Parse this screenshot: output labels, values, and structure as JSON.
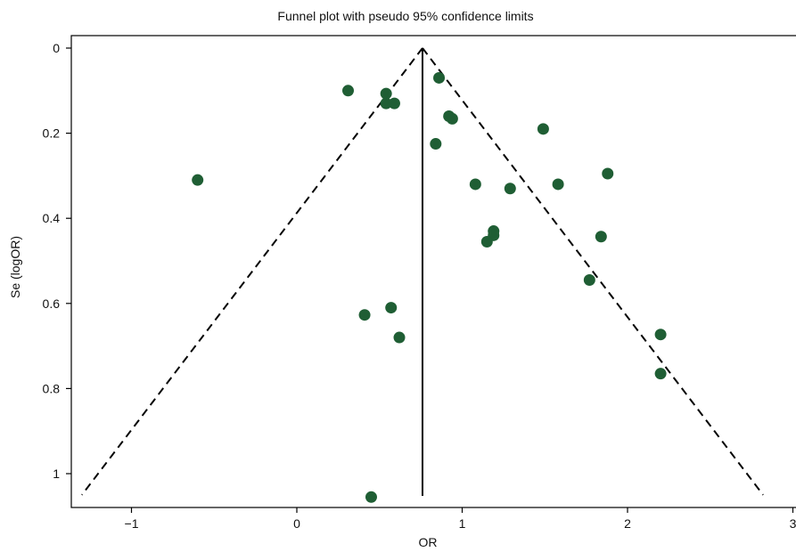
{
  "chart_data": {
    "type": "scatter",
    "title": "Funnel plot with pseudo 95% confidence limits",
    "xlabel": "OR",
    "ylabel": "Se (logOR)",
    "xlim": [
      -1.35,
      3
    ],
    "ylim": [
      0,
      1.07
    ],
    "y_inverted": true,
    "x_ticks": [
      -1,
      0,
      1,
      2,
      3
    ],
    "x_tick_labels": [
      "−1",
      "0",
      "1",
      "2",
      "3"
    ],
    "y_ticks": [
      0,
      0.2,
      0.4,
      0.6,
      0.8,
      1
    ],
    "y_tick_labels": [
      "0",
      "0.2",
      "0.4",
      "0.6",
      "0.8",
      "1"
    ],
    "pooled_estimate": 0.76,
    "funnel_limits": {
      "apex": [
        0.76,
        0
      ],
      "bottom_left": [
        -1.3,
        1.05
      ],
      "bottom_right": [
        2.82,
        1.05
      ]
    },
    "marker_color": "#1f5e34",
    "points": [
      {
        "x": 0.86,
        "y": 0.07
      },
      {
        "x": 0.31,
        "y": 0.1
      },
      {
        "x": 0.54,
        "y": 0.107
      },
      {
        "x": 0.54,
        "y": 0.13
      },
      {
        "x": 0.59,
        "y": 0.13
      },
      {
        "x": 0.92,
        "y": 0.16
      },
      {
        "x": 0.94,
        "y": 0.166
      },
      {
        "x": 0.84,
        "y": 0.225
      },
      {
        "x": 1.49,
        "y": 0.19
      },
      {
        "x": -0.6,
        "y": 0.31
      },
      {
        "x": 1.08,
        "y": 0.32
      },
      {
        "x": 1.29,
        "y": 0.33
      },
      {
        "x": 1.58,
        "y": 0.32
      },
      {
        "x": 1.88,
        "y": 0.295
      },
      {
        "x": 1.19,
        "y": 0.43
      },
      {
        "x": 1.19,
        "y": 0.44
      },
      {
        "x": 1.15,
        "y": 0.455
      },
      {
        "x": 1.84,
        "y": 0.443
      },
      {
        "x": 1.77,
        "y": 0.545
      },
      {
        "x": 0.57,
        "y": 0.61
      },
      {
        "x": 0.41,
        "y": 0.627
      },
      {
        "x": 0.62,
        "y": 0.68
      },
      {
        "x": 2.2,
        "y": 0.673
      },
      {
        "x": 2.2,
        "y": 0.765
      },
      {
        "x": 0.45,
        "y": 1.055
      }
    ]
  }
}
